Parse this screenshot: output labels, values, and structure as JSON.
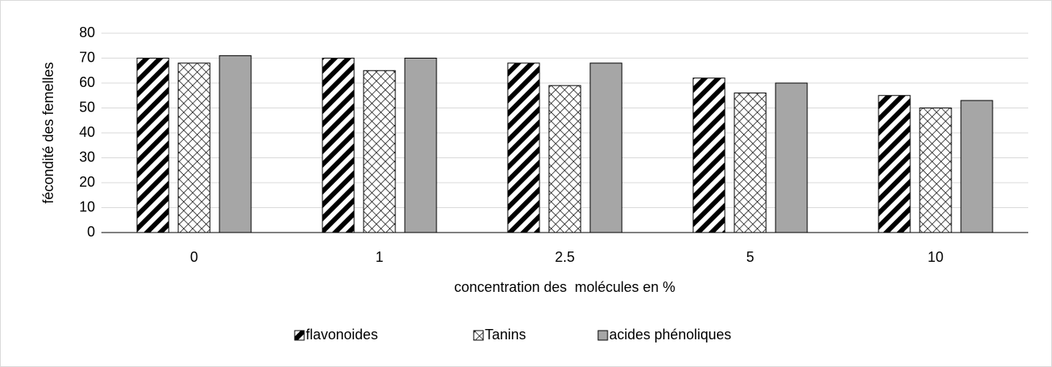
{
  "chart_data": {
    "type": "bar",
    "y_label": "fécondité des femelles",
    "x_label": "concentration des  molécules en %",
    "categories": [
      "0",
      "1",
      "2.5",
      "5",
      "10"
    ],
    "series": [
      {
        "name": "flavonoides",
        "color": "#000000",
        "pattern": "diagonal-stripes",
        "values": [
          70,
          70,
          68,
          62,
          55
        ]
      },
      {
        "name": "Tanins",
        "color": "#000000",
        "pattern": "crosshatch",
        "values": [
          68,
          65,
          59,
          56,
          50
        ]
      },
      {
        "name": "acides phénoliques",
        "color": "#a6a6a6",
        "pattern": "solid",
        "values": [
          71,
          70,
          68,
          60,
          53
        ]
      }
    ],
    "ylim": [
      0,
      80
    ],
    "yticks": [
      0,
      10,
      20,
      30,
      40,
      50,
      60,
      70,
      80
    ],
    "grid": true,
    "legend": "bottom"
  }
}
